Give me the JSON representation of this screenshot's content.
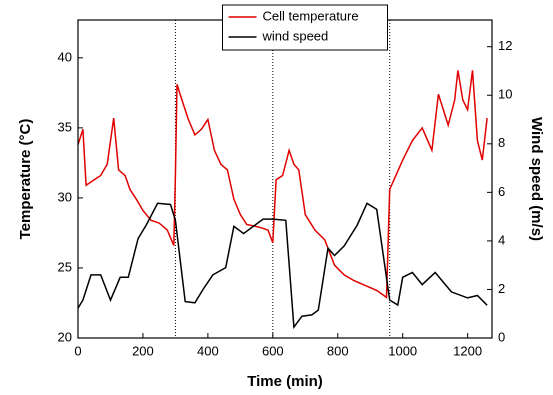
{
  "chart_data": {
    "type": "line",
    "xlabel": "Time (min)",
    "ylabel": "Temperature (°C)",
    "y2label": "Wind speed (m/s)",
    "xlim": [
      0,
      1275
    ],
    "xticks": [
      0,
      200,
      400,
      600,
      800,
      1000,
      1200
    ],
    "ylim": [
      20,
      42.7
    ],
    "yticks": [
      20,
      25,
      30,
      35,
      40
    ],
    "y2lim": [
      0,
      13.1
    ],
    "y2ticks": [
      0,
      2,
      4,
      6,
      8,
      10,
      12
    ],
    "vlines": [
      300,
      600,
      960
    ],
    "legend": "upper center",
    "series": [
      {
        "name": "Cell temperature",
        "color": "#e00000",
        "axis": "y",
        "x": [
          0,
          15,
          25,
          50,
          70,
          90,
          110,
          125,
          145,
          160,
          180,
          200,
          225,
          250,
          275,
          295,
          300,
          305,
          320,
          340,
          360,
          380,
          400,
          420,
          440,
          460,
          480,
          500,
          520,
          560,
          585,
          600,
          610,
          630,
          650,
          665,
          680,
          700,
          730,
          760,
          790,
          820,
          850,
          880,
          920,
          950,
          960,
          975,
          1000,
          1030,
          1060,
          1090,
          1110,
          1140,
          1160,
          1170,
          1185,
          1200,
          1215,
          1230,
          1245,
          1260
        ],
        "values": [
          33.8,
          34.9,
          30.9,
          31.3,
          31.6,
          32.4,
          35.7,
          32,
          31.6,
          30.6,
          29.9,
          29.1,
          28.4,
          28.2,
          27.7,
          26.6,
          31.6,
          38.1,
          37,
          35.6,
          34.5,
          34.9,
          35.6,
          33.4,
          32.4,
          32,
          29.9,
          28.8,
          28.1,
          27.9,
          27.7,
          26.8,
          31.3,
          31.6,
          33.4,
          32.4,
          32,
          28.8,
          27.7,
          27,
          25.2,
          24.5,
          24.1,
          23.8,
          23.4,
          22.9,
          30.6,
          31.4,
          32.7,
          34.1,
          35,
          33.4,
          37.4,
          35.2,
          37,
          39.1,
          37,
          36.3,
          39.1,
          34.1,
          32.7,
          35.7
        ]
      },
      {
        "name": "wind speed",
        "color": "#000000",
        "axis": "y2",
        "x": [
          0,
          15,
          40,
          70,
          100,
          130,
          155,
          185,
          210,
          245,
          285,
          300,
          330,
          360,
          385,
          415,
          455,
          480,
          510,
          540,
          570,
          600,
          640,
          665,
          690,
          720,
          740,
          770,
          790,
          820,
          860,
          890,
          920,
          960,
          985,
          1000,
          1030,
          1060,
          1100,
          1150,
          1200,
          1230,
          1260
        ],
        "values": [
          1.23,
          1.56,
          2.6,
          2.6,
          1.56,
          2.5,
          2.5,
          4.1,
          4.65,
          5.55,
          5.5,
          4.85,
          1.5,
          1.45,
          2.0,
          2.6,
          2.9,
          4.6,
          4.3,
          4.6,
          4.9,
          4.9,
          4.85,
          0.45,
          0.9,
          0.95,
          1.15,
          3.7,
          3.4,
          3.8,
          4.65,
          5.55,
          5.3,
          1.56,
          1.36,
          2.5,
          2.7,
          2.2,
          2.7,
          1.9,
          1.65,
          1.75,
          1.35
        ]
      }
    ]
  }
}
